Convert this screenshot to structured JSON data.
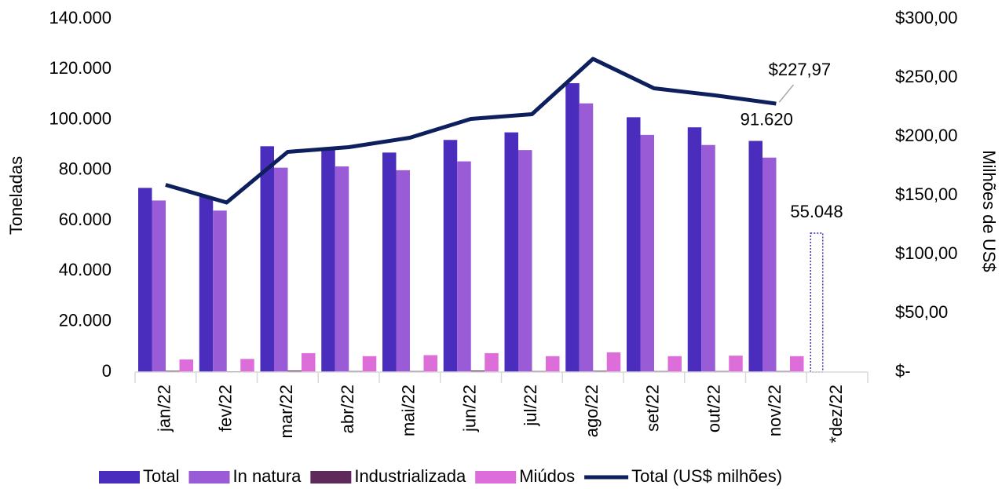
{
  "chart_data": {
    "type": "bar",
    "categories": [
      "jan/22",
      "fev/22",
      "mar/22",
      "abr/22",
      "mai/22",
      "jun/22",
      "jul/22",
      "ago/22",
      "set/22",
      "out/22",
      "nov/22",
      "*dez/22"
    ],
    "y_label": "Toneladas",
    "y2_label": "Milhões de US$",
    "ylim": [
      0,
      140000
    ],
    "yticks": [
      0,
      {
        "value": 20000,
        "label": "20.000"
      },
      {
        "value": 40000,
        "label": "40.000"
      },
      {
        "value": 60000,
        "label": "60.000"
      },
      {
        "value": 80000,
        "label": "80.000"
      },
      {
        "value": 100000,
        "label": "100.000"
      },
      {
        "value": 120000,
        "label": "120.000"
      },
      {
        "value": 140000,
        "label": "140.000"
      }
    ],
    "y2lim": [
      0,
      300
    ],
    "y2ticks": [
      {
        "value": 0,
        "label": "$-"
      },
      {
        "value": 50,
        "label": "$50,00"
      },
      {
        "value": 100,
        "label": "$100,00"
      },
      {
        "value": 150,
        "label": "$150,00"
      },
      {
        "value": 200,
        "label": "$200,00"
      },
      {
        "value": 250,
        "label": "$250,00"
      },
      {
        "value": 300,
        "label": "$300,00"
      }
    ],
    "legend": "bottom",
    "series": [
      {
        "name": "Total",
        "type": "bar",
        "color": "#4a2dbd",
        "outline_only": [
          11
        ],
        "values": [
          73000,
          69500,
          89500,
          88500,
          87000,
          92000,
          95000,
          114500,
          101000,
          97000,
          91620,
          55048
        ],
        "value_labels": [
          null,
          null,
          null,
          null,
          null,
          null,
          null,
          null,
          null,
          null,
          "91.620",
          "55.048"
        ]
      },
      {
        "name": "In natura",
        "type": "bar",
        "color": "#9a5bd6",
        "values": [
          68000,
          64000,
          81000,
          81500,
          80000,
          83500,
          88000,
          106500,
          94000,
          90000,
          85000,
          null
        ]
      },
      {
        "name": "Industrializada",
        "type": "bar",
        "color": "#5e2a5c",
        "values": [
          500,
          300,
          600,
          400,
          400,
          600,
          400,
          500,
          400,
          400,
          400,
          null
        ]
      },
      {
        "name": "Miúdos",
        "type": "bar",
        "color": "#dd6ed9",
        "values": [
          5000,
          5200,
          7500,
          6300,
          6700,
          7500,
          6300,
          7800,
          6300,
          6500,
          6300,
          null
        ]
      },
      {
        "name": "Total (US$ milhões)",
        "type": "line",
        "axis": "y2",
        "color": "#0d1f5c",
        "values": [
          159,
          144,
          187,
          191,
          199,
          215,
          219,
          266,
          241,
          235,
          227.97,
          null
        ],
        "value_labels": [
          null,
          null,
          null,
          null,
          null,
          null,
          null,
          null,
          null,
          null,
          "$227,97",
          null
        ]
      }
    ]
  }
}
